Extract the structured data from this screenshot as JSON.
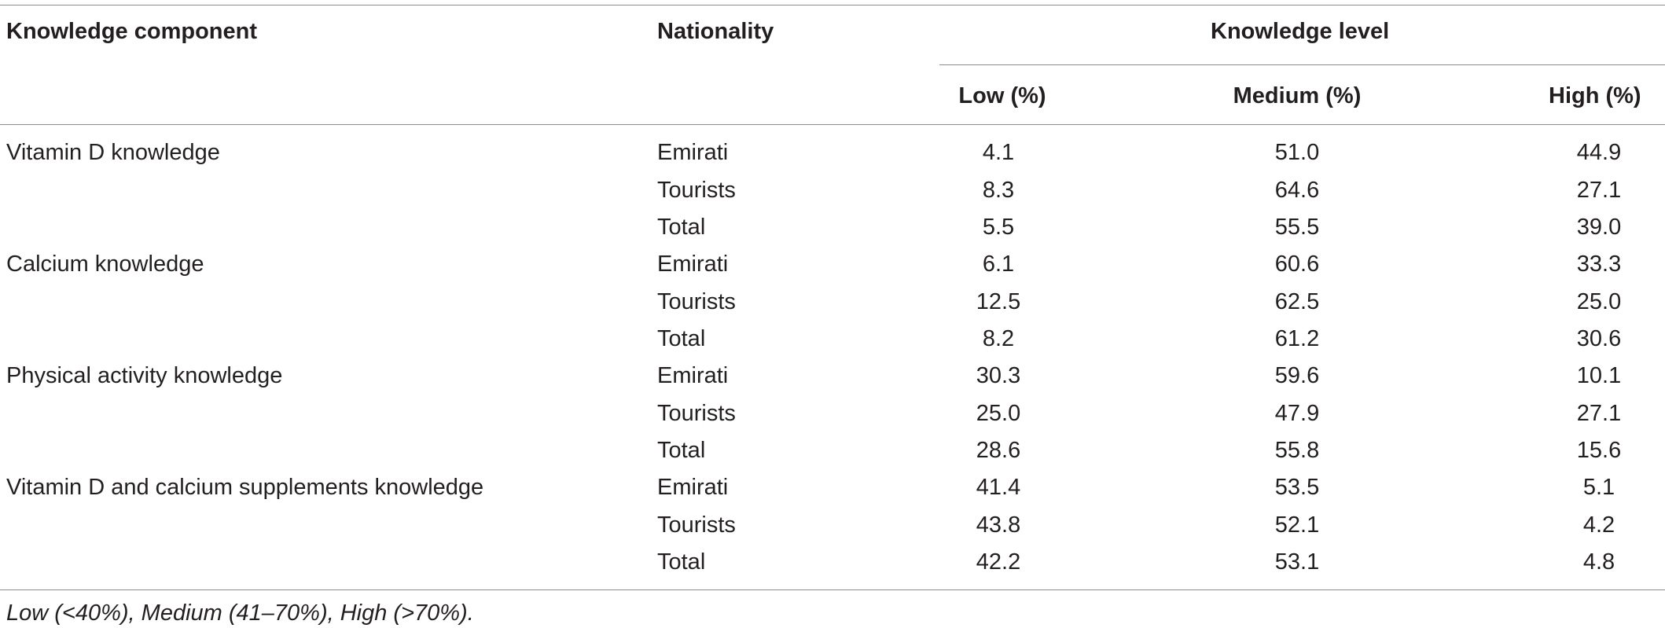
{
  "table": {
    "headers": {
      "component": "Knowledge component",
      "nationality": "Nationality",
      "level_group": "Knowledge level",
      "low": "Low (%)",
      "medium": "Medium (%)",
      "high": "High (%)"
    },
    "rows": [
      {
        "component": "Vitamin D knowledge",
        "nationality": "Emirati",
        "low": "4.1",
        "medium": "51.0",
        "high": "44.9"
      },
      {
        "component": "",
        "nationality": "Tourists",
        "low": "8.3",
        "medium": "64.6",
        "high": "27.1"
      },
      {
        "component": "",
        "nationality": "Total",
        "low": "5.5",
        "medium": "55.5",
        "high": "39.0"
      },
      {
        "component": "Calcium knowledge",
        "nationality": "Emirati",
        "low": "6.1",
        "medium": "60.6",
        "high": "33.3"
      },
      {
        "component": "",
        "nationality": "Tourists",
        "low": "12.5",
        "medium": "62.5",
        "high": "25.0"
      },
      {
        "component": "",
        "nationality": "Total",
        "low": "8.2",
        "medium": "61.2",
        "high": "30.6"
      },
      {
        "component": "Physical activity knowledge",
        "nationality": "Emirati",
        "low": "30.3",
        "medium": "59.6",
        "high": "10.1"
      },
      {
        "component": "",
        "nationality": "Tourists",
        "low": "25.0",
        "medium": "47.9",
        "high": "27.1"
      },
      {
        "component": "",
        "nationality": "Total",
        "low": "28.6",
        "medium": "55.8",
        "high": "15.6"
      },
      {
        "component": "Vitamin D and calcium supplements knowledge",
        "nationality": "Emirati",
        "low": "41.4",
        "medium": "53.5",
        "high": "5.1"
      },
      {
        "component": "",
        "nationality": "Tourists",
        "low": "43.8",
        "medium": "52.1",
        "high": "4.2"
      },
      {
        "component": "",
        "nationality": "Total",
        "low": "42.2",
        "medium": "53.1",
        "high": "4.8"
      }
    ],
    "footnote": "Low (<40%), Medium (41–70%), High (>70%)."
  }
}
